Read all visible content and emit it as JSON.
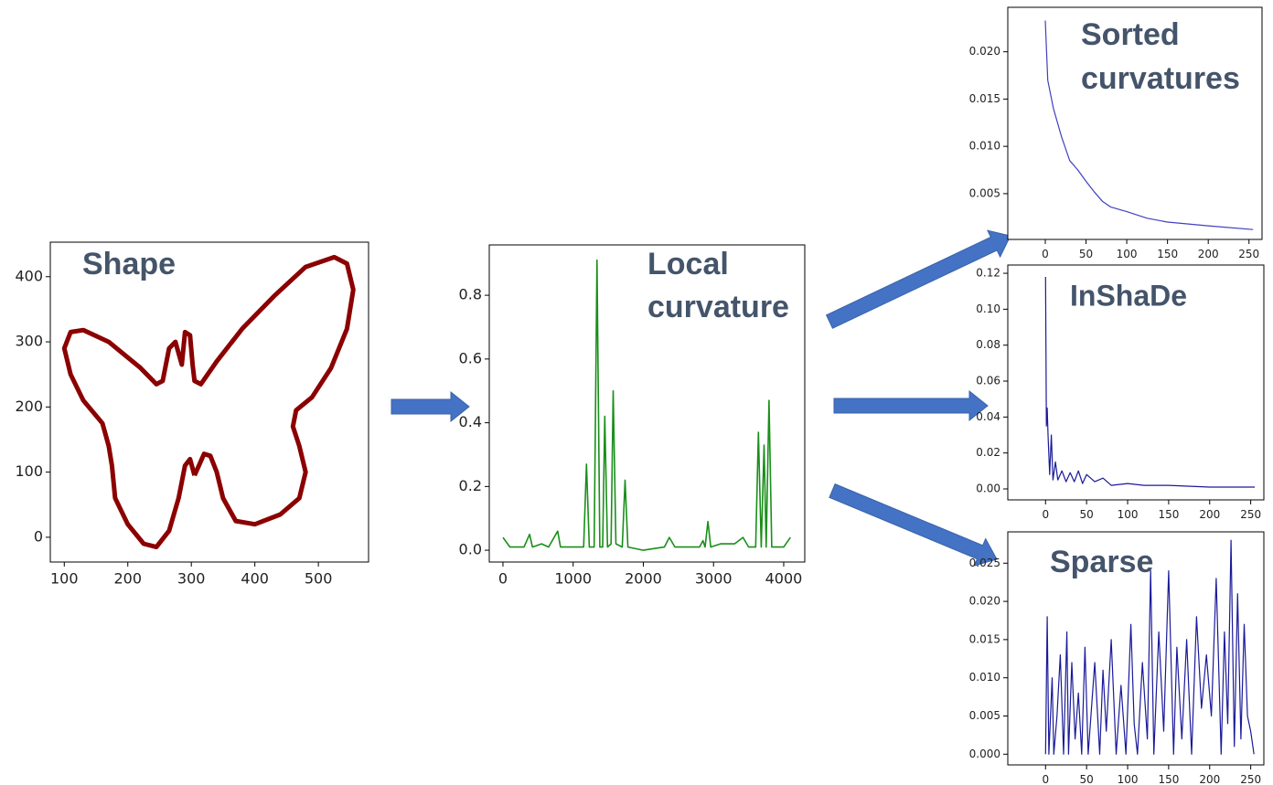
{
  "chart_data": [
    {
      "type": "line",
      "title": [
        "Shape"
      ],
      "color": "#8b0000",
      "x": [
        305,
        298,
        290,
        280,
        265,
        245,
        225,
        200,
        180,
        175,
        170,
        160,
        130,
        110,
        100,
        110,
        130,
        170,
        220,
        245,
        255,
        265,
        275,
        285,
        290,
        298,
        302,
        305,
        315,
        340,
        380,
        430,
        480,
        525,
        545,
        555,
        545,
        520,
        490,
        465,
        460,
        470,
        480,
        470,
        440,
        400,
        370,
        350,
        340,
        330,
        320,
        312,
        305
      ],
      "values": [
        95,
        120,
        110,
        60,
        10,
        -15,
        -10,
        20,
        60,
        110,
        140,
        175,
        210,
        250,
        290,
        315,
        318,
        300,
        260,
        235,
        240,
        290,
        300,
        265,
        315,
        310,
        265,
        240,
        235,
        270,
        320,
        370,
        415,
        430,
        420,
        380,
        320,
        260,
        215,
        195,
        170,
        140,
        100,
        60,
        35,
        20,
        25,
        60,
        100,
        125,
        128,
        110,
        95
      ],
      "xlim": [
        78,
        579
      ],
      "ylim": [
        -38,
        453
      ],
      "xticks": [
        100,
        200,
        300,
        400,
        500
      ],
      "yticks": [
        0,
        100,
        200,
        300,
        400
      ]
    },
    {
      "type": "line",
      "title": [
        "Local",
        "curvature"
      ],
      "color": "#1a8f1a",
      "x": [
        0,
        100,
        300,
        380,
        420,
        550,
        650,
        780,
        820,
        1000,
        1150,
        1190,
        1230,
        1300,
        1340,
        1380,
        1420,
        1450,
        1490,
        1540,
        1570,
        1610,
        1700,
        1740,
        1780,
        2000,
        2300,
        2370,
        2450,
        2800,
        2850,
        2880,
        2920,
        2960,
        3100,
        3300,
        3420,
        3500,
        3600,
        3640,
        3680,
        3720,
        3750,
        3790,
        3830,
        4000,
        4096
      ],
      "values": [
        0.04,
        0.01,
        0.01,
        0.05,
        0.01,
        0.02,
        0.01,
        0.06,
        0.01,
        0.01,
        0.01,
        0.27,
        0.01,
        0.01,
        0.91,
        0.01,
        0.01,
        0.42,
        0.01,
        0.02,
        0.5,
        0.02,
        0.01,
        0.22,
        0.01,
        0.0,
        0.01,
        0.04,
        0.01,
        0.01,
        0.03,
        0.01,
        0.09,
        0.01,
        0.02,
        0.02,
        0.04,
        0.01,
        0.01,
        0.37,
        0.01,
        0.33,
        0.01,
        0.47,
        0.01,
        0.01,
        0.04
      ],
      "xlim": [
        -195,
        4300
      ],
      "ylim": [
        -0.037,
        0.958
      ],
      "xticks": [
        0,
        1000,
        2000,
        3000,
        4000
      ],
      "yticks": [
        {
          "value": 0,
          "label": "0.0"
        },
        0.2,
        0.4,
        0.6,
        0.8
      ]
    },
    {
      "type": "line",
      "title": [
        "Sorted",
        "curvatures"
      ],
      "color": "#4040c0",
      "x": [
        0,
        3,
        10,
        20,
        30,
        40,
        50,
        60,
        70,
        80,
        100,
        125,
        150,
        200,
        255
      ],
      "values": [
        0.0233,
        0.017,
        0.014,
        0.011,
        0.0085,
        0.0075,
        0.0063,
        0.0052,
        0.0042,
        0.0036,
        0.0031,
        0.0024,
        0.002,
        0.0016,
        0.0012
      ],
      "xlim": [
        -46,
        266
      ],
      "ylim": [
        0.00016,
        0.0247
      ],
      "xticks": [
        0,
        50,
        100,
        150,
        200,
        250
      ],
      "yticks": [
        0.005,
        {
          "value": 0.01,
          "label": "0.010"
        },
        0.015,
        {
          "value": 0.02,
          "label": "0.020"
        }
      ]
    },
    {
      "type": "line",
      "title": [
        "InShaDe"
      ],
      "color": "#1a1a99",
      "x": [
        0,
        1,
        2,
        3,
        5,
        7,
        9,
        12,
        15,
        20,
        25,
        30,
        35,
        40,
        45,
        50,
        60,
        70,
        80,
        100,
        120,
        150,
        200,
        255
      ],
      "values": [
        0.118,
        0.035,
        0.045,
        0.03,
        0.008,
        0.03,
        0.005,
        0.015,
        0.005,
        0.01,
        0.004,
        0.009,
        0.004,
        0.01,
        0.003,
        0.008,
        0.004,
        0.006,
        0.002,
        0.003,
        0.002,
        0.002,
        0.001,
        0.001
      ],
      "xlim": [
        -46,
        266
      ],
      "ylim": [
        -0.0061,
        0.1246
      ],
      "xticks": [
        0,
        50,
        100,
        150,
        200,
        250
      ],
      "yticks": [
        {
          "value": 0,
          "label": "0.00"
        },
        0.02,
        0.04,
        0.06,
        0.08,
        {
          "value": 0.1,
          "label": "0.10"
        },
        0.12
      ]
    },
    {
      "type": "line",
      "title": [
        "Sparse"
      ],
      "color": "#1a1a99",
      "x": [
        0,
        2,
        4,
        8,
        10,
        14,
        18,
        22,
        26,
        28,
        32,
        36,
        40,
        44,
        48,
        52,
        56,
        60,
        66,
        70,
        74,
        80,
        86,
        92,
        98,
        104,
        108,
        112,
        118,
        124,
        128,
        132,
        138,
        144,
        150,
        156,
        160,
        166,
        172,
        178,
        184,
        190,
        196,
        202,
        208,
        214,
        218,
        222,
        226,
        230,
        234,
        238,
        242,
        246,
        250,
        254
      ],
      "values": [
        0,
        0.018,
        0,
        0.01,
        0,
        0.005,
        0.013,
        0,
        0.016,
        0,
        0.012,
        0.002,
        0.008,
        0,
        0.014,
        0,
        0.006,
        0.012,
        0,
        0.011,
        0.003,
        0.015,
        0,
        0.009,
        0,
        0.017,
        0.004,
        0,
        0.012,
        0.002,
        0.024,
        0,
        0.016,
        0.003,
        0.024,
        0,
        0.014,
        0.002,
        0.015,
        0,
        0.018,
        0.006,
        0.013,
        0.005,
        0.023,
        0,
        0.016,
        0.004,
        0.028,
        0.001,
        0.021,
        0.002,
        0.017,
        0.005,
        0.003,
        0
      ],
      "xlim": [
        -46,
        266
      ],
      "ylim": [
        -0.0014,
        0.0291
      ],
      "xticks": [
        0,
        50,
        100,
        150,
        200,
        250
      ],
      "yticks": [
        {
          "value": 0,
          "label": "0.000"
        },
        0.005,
        {
          "value": 0.01,
          "label": "0.010"
        },
        0.015,
        {
          "value": 0.02,
          "label": "0.020"
        },
        0.025
      ]
    }
  ]
}
